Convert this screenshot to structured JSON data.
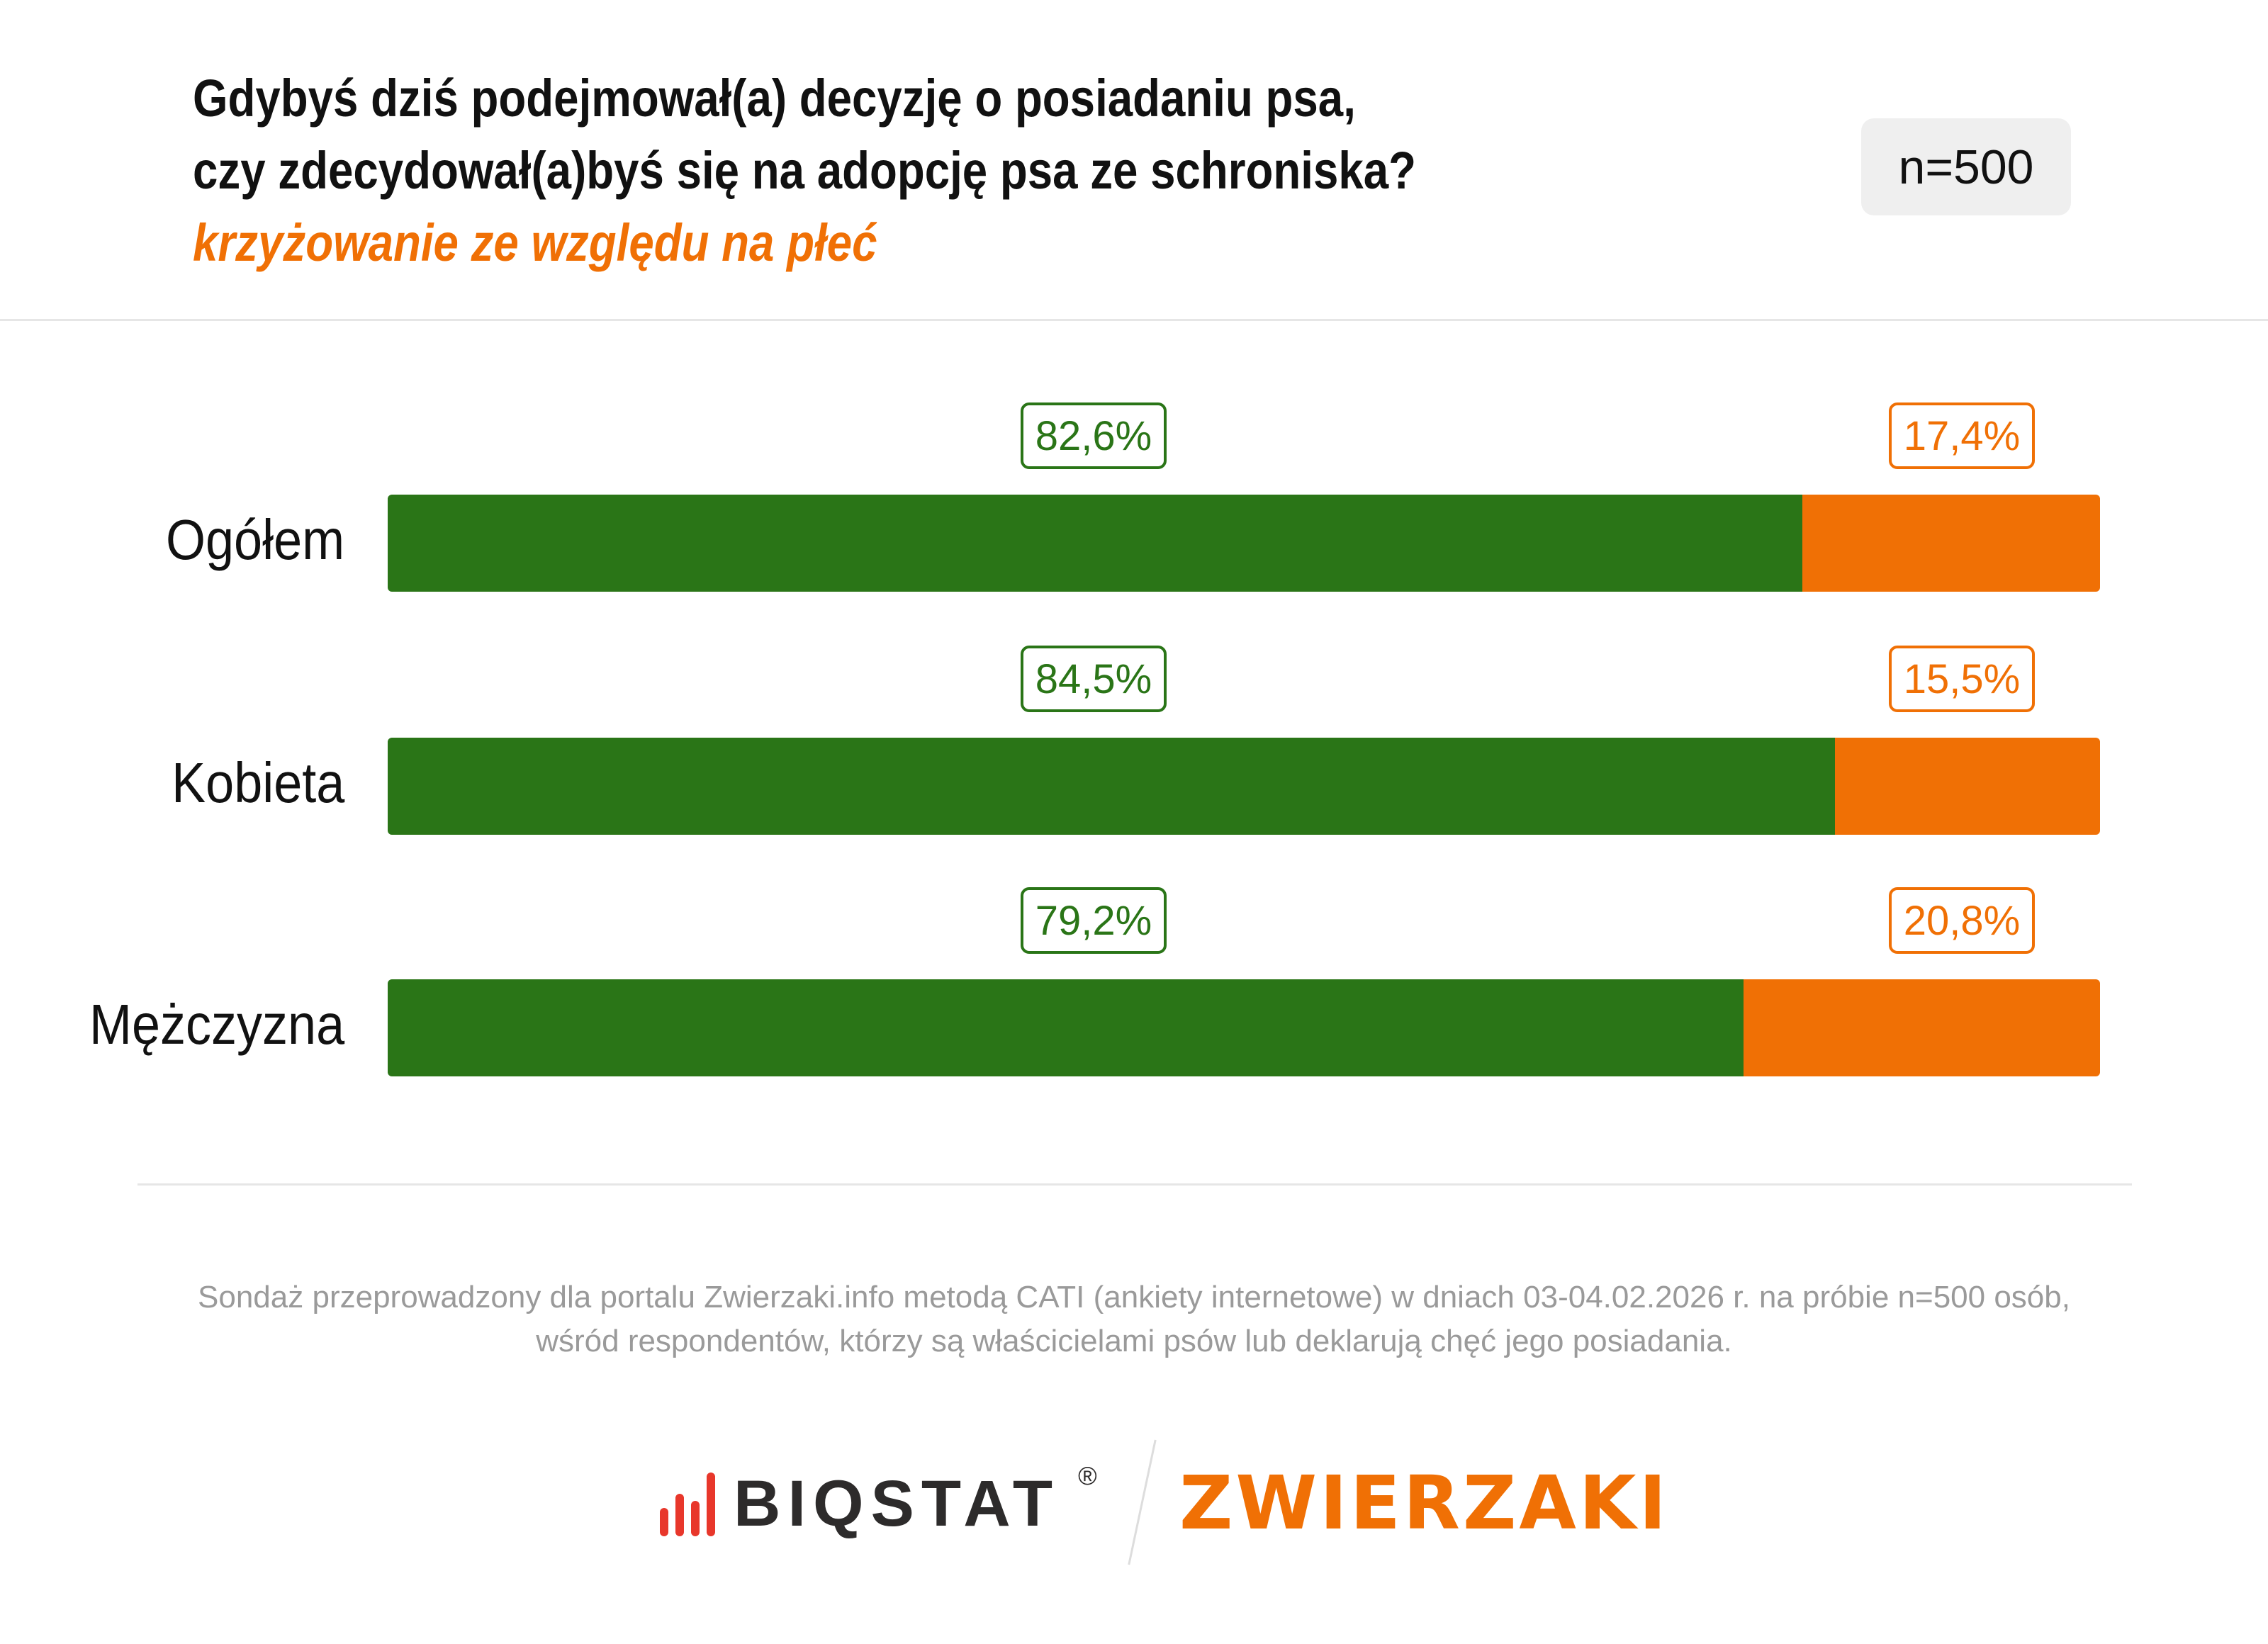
{
  "header": {
    "title_line1": "Gdybyś dziś podejmował(a) decyzję o posiadaniu psa,",
    "title_line2": "czy zdecydował(a)byś się na adopcję psa ze schroniska?",
    "subtitle": "krzyżowanie ze względu na płeć",
    "sample_badge": "n=500"
  },
  "chart_data": {
    "type": "bar",
    "orientation": "horizontal-stacked-100",
    "categories": [
      "Ogółem",
      "Kobieta",
      "Mężczyzna"
    ],
    "series": [
      {
        "values": [
          82.6,
          84.5,
          79.2
        ],
        "labels": [
          "82,6%",
          "84,5%",
          "79,2%"
        ],
        "color": "#2a7517"
      },
      {
        "values": [
          17.4,
          15.5,
          20.8
        ],
        "labels": [
          "17,4%",
          "15,5%",
          "20,8%"
        ],
        "color": "#f07005"
      }
    ],
    "xlim": [
      0,
      100
    ]
  },
  "footer": {
    "line1": "Sondaż przeprowadzony dla portalu Zwierzaki.info metodą CATI (ankiety internetowe) w dniach 03-04.02.2026 r. na próbie n=500 osób,",
    "line2": "wśród respondentów, którzy są właścicielami psów lub deklarują chęć jego posiadania."
  },
  "logos": {
    "biostat": "BIQSTAT",
    "biostat_mark": "®",
    "zwierzaki": "ZWIERZAKI"
  },
  "colors": {
    "green": "#2a7517",
    "orange": "#f07005"
  }
}
